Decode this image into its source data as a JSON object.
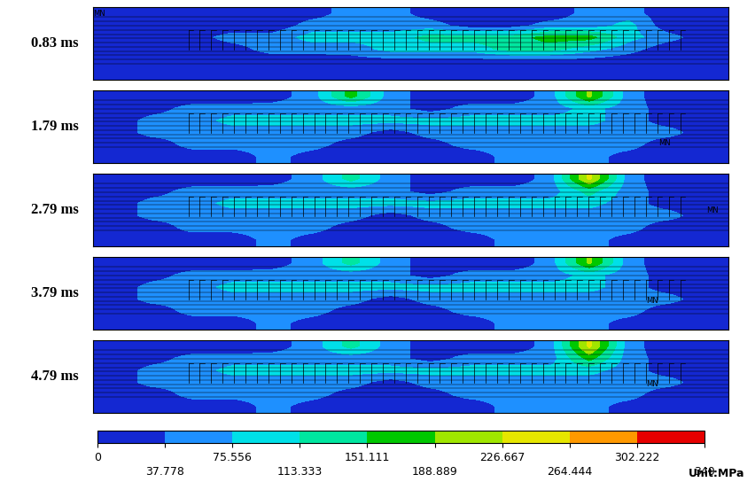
{
  "chart_data": {
    "type": "heatmap",
    "tick_labels": false,
    "panels": [
      {
        "ylabel": "0.83 ms",
        "annotations": [
          "MN"
        ],
        "cells": [
          [
            10,
            10,
            10,
            10,
            10,
            20,
            55,
            55,
            20,
            10,
            10,
            10,
            55,
            55,
            10,
            10
          ],
          [
            10,
            10,
            10,
            10,
            10,
            55,
            55,
            55,
            55,
            20,
            20,
            55,
            55,
            90,
            10,
            10
          ],
          [
            10,
            10,
            20,
            55,
            55,
            90,
            90,
            90,
            130,
            130,
            130,
            170,
            170,
            90,
            55,
            10
          ],
          [
            10,
            10,
            10,
            20,
            55,
            55,
            55,
            90,
            90,
            90,
            130,
            130,
            90,
            55,
            10,
            10
          ],
          [
            10,
            10,
            10,
            10,
            10,
            10,
            20,
            20,
            20,
            20,
            20,
            20,
            20,
            10,
            10,
            10
          ],
          [
            10,
            10,
            10,
            10,
            10,
            10,
            10,
            10,
            10,
            10,
            10,
            10,
            10,
            10,
            10,
            10
          ]
        ]
      },
      {
        "ylabel": "1.79 ms",
        "annotations": [
          "MN"
        ],
        "cells": [
          [
            10,
            10,
            10,
            10,
            20,
            55,
            170,
            55,
            20,
            10,
            10,
            55,
            200,
            55,
            10,
            10
          ],
          [
            10,
            20,
            55,
            55,
            55,
            55,
            55,
            55,
            20,
            55,
            55,
            55,
            90,
            55,
            20,
            10
          ],
          [
            10,
            55,
            55,
            90,
            90,
            90,
            90,
            90,
            90,
            90,
            90,
            90,
            90,
            55,
            20,
            10
          ],
          [
            10,
            55,
            55,
            55,
            55,
            55,
            55,
            20,
            55,
            55,
            55,
            55,
            55,
            55,
            55,
            10
          ],
          [
            10,
            10,
            55,
            55,
            55,
            55,
            20,
            10,
            20,
            55,
            55,
            55,
            55,
            55,
            10,
            10
          ],
          [
            10,
            10,
            10,
            10,
            55,
            20,
            10,
            10,
            10,
            10,
            55,
            55,
            55,
            20,
            10,
            10
          ]
        ]
      },
      {
        "ylabel": "2.79 ms",
        "annotations": [
          "MN"
        ],
        "cells": [
          [
            10,
            10,
            10,
            10,
            20,
            55,
            130,
            55,
            20,
            10,
            10,
            55,
            240,
            55,
            10,
            10
          ],
          [
            10,
            20,
            55,
            55,
            55,
            55,
            55,
            55,
            20,
            55,
            55,
            55,
            130,
            55,
            20,
            10
          ],
          [
            10,
            55,
            55,
            90,
            90,
            90,
            90,
            90,
            90,
            90,
            90,
            90,
            90,
            55,
            20,
            10
          ],
          [
            10,
            55,
            55,
            55,
            55,
            55,
            55,
            20,
            55,
            55,
            55,
            55,
            55,
            55,
            55,
            10
          ],
          [
            10,
            10,
            55,
            55,
            55,
            55,
            20,
            10,
            20,
            55,
            55,
            55,
            55,
            55,
            10,
            10
          ],
          [
            10,
            10,
            10,
            10,
            55,
            20,
            10,
            10,
            10,
            10,
            55,
            55,
            55,
            20,
            10,
            10
          ]
        ]
      },
      {
        "ylabel": "3.79 ms",
        "annotations": [
          "MN"
        ],
        "cells": [
          [
            10,
            10,
            10,
            10,
            20,
            55,
            130,
            55,
            20,
            10,
            10,
            55,
            200,
            55,
            10,
            10
          ],
          [
            10,
            20,
            55,
            55,
            55,
            55,
            55,
            55,
            20,
            55,
            55,
            55,
            90,
            55,
            20,
            10
          ],
          [
            10,
            55,
            55,
            90,
            90,
            90,
            90,
            90,
            90,
            90,
            90,
            90,
            90,
            55,
            20,
            10
          ],
          [
            10,
            55,
            55,
            55,
            55,
            55,
            55,
            20,
            55,
            55,
            55,
            55,
            55,
            55,
            55,
            10
          ],
          [
            10,
            10,
            55,
            55,
            55,
            55,
            20,
            10,
            20,
            55,
            55,
            55,
            55,
            55,
            10,
            10
          ],
          [
            10,
            10,
            10,
            10,
            55,
            20,
            10,
            10,
            10,
            10,
            55,
            55,
            55,
            20,
            10,
            10
          ]
        ]
      },
      {
        "ylabel": "4.79 ms",
        "annotations": [
          "MN"
        ],
        "cells": [
          [
            10,
            10,
            10,
            10,
            20,
            55,
            130,
            55,
            20,
            10,
            10,
            55,
            240,
            55,
            10,
            10
          ],
          [
            10,
            20,
            55,
            55,
            55,
            55,
            55,
            55,
            20,
            55,
            55,
            55,
            170,
            55,
            20,
            10
          ],
          [
            10,
            55,
            55,
            90,
            90,
            90,
            90,
            90,
            90,
            90,
            90,
            90,
            90,
            55,
            20,
            10
          ],
          [
            10,
            55,
            55,
            55,
            55,
            55,
            55,
            20,
            55,
            55,
            55,
            55,
            55,
            55,
            55,
            10
          ],
          [
            10,
            10,
            55,
            55,
            55,
            55,
            20,
            10,
            20,
            55,
            55,
            55,
            55,
            55,
            10,
            10
          ],
          [
            10,
            10,
            10,
            10,
            55,
            20,
            10,
            10,
            10,
            10,
            55,
            55,
            55,
            20,
            10,
            10
          ]
        ]
      }
    ],
    "colorbar": {
      "range": [
        0,
        340
      ],
      "ticks": [
        0,
        37.778,
        75.556,
        113.333,
        151.111,
        188.889,
        226.667,
        264.444,
        302.222,
        340
      ],
      "colors": [
        "#1428d2",
        "#1e90ff",
        "#00e0e8",
        "#00e6a0",
        "#00c800",
        "#a0e600",
        "#e6e600",
        "#ff9900",
        "#e60000"
      ],
      "label": "Unit:MPa"
    }
  }
}
